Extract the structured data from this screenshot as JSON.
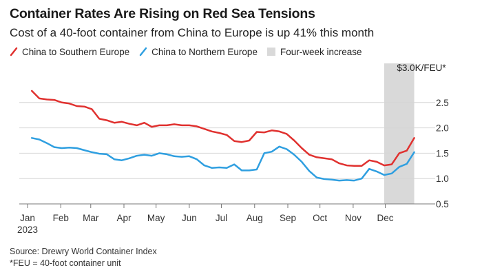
{
  "header": {
    "title": "Container Rates Are Rising on Red Sea Tensions",
    "subtitle": "Cost of a 40-foot container from China to Europe is up 41% this month"
  },
  "legend": {
    "southern": "China to Southern Europe",
    "northern": "China to Northern Europe",
    "increase": "Four-week increase"
  },
  "footer": {
    "source": "Source: Drewry World Container Index",
    "note": "*FEU = 40-foot container unit"
  },
  "colors": {
    "southern": "#e0312f",
    "northern": "#2f9fe0",
    "band": "#d9d9d9",
    "grid": "#d6d6d6",
    "axis": "#777777"
  },
  "chart_data": {
    "type": "line",
    "y_unit_label": "$3.0K/FEU*",
    "ylim": [
      0.5,
      3.0
    ],
    "yticks": [
      0.5,
      1.0,
      1.5,
      2.0,
      2.5
    ],
    "ytick_labels": [
      "0.5",
      "1.0",
      "1.5",
      "2.0",
      "2.5"
    ],
    "y_axis_side": "right",
    "xlim": [
      "2023-01-01",
      "2023-12-27"
    ],
    "x_ticks": [
      {
        "date": "2023-01-01",
        "label": "Jan",
        "sublabel": "2023"
      },
      {
        "date": "2023-02-01",
        "label": "Feb"
      },
      {
        "date": "2023-03-01",
        "label": "Mar"
      },
      {
        "date": "2023-04-01",
        "label": "Apr"
      },
      {
        "date": "2023-05-01",
        "label": "May"
      },
      {
        "date": "2023-06-01",
        "label": "Jun"
      },
      {
        "date": "2023-07-01",
        "label": "Jul"
      },
      {
        "date": "2023-08-01",
        "label": "Aug"
      },
      {
        "date": "2023-09-01",
        "label": "Sep"
      },
      {
        "date": "2023-10-01",
        "label": "Oct"
      },
      {
        "date": "2023-11-01",
        "label": "Nov"
      },
      {
        "date": "2023-12-01",
        "label": "Dec"
      }
    ],
    "highlight_band": {
      "start": "2023-11-30",
      "end": "2023-12-28"
    },
    "series": [
      {
        "name": "China to Southern Europe",
        "points": [
          [
            "2023-01-05",
            2.73
          ],
          [
            "2023-01-12",
            2.58
          ],
          [
            "2023-01-19",
            2.56
          ],
          [
            "2023-01-26",
            2.55
          ],
          [
            "2023-02-02",
            2.5
          ],
          [
            "2023-02-09",
            2.48
          ],
          [
            "2023-02-16",
            2.43
          ],
          [
            "2023-02-23",
            2.42
          ],
          [
            "2023-03-02",
            2.37
          ],
          [
            "2023-03-09",
            2.18
          ],
          [
            "2023-03-16",
            2.15
          ],
          [
            "2023-03-23",
            2.1
          ],
          [
            "2023-03-30",
            2.12
          ],
          [
            "2023-04-06",
            2.08
          ],
          [
            "2023-04-13",
            2.05
          ],
          [
            "2023-04-20",
            2.1
          ],
          [
            "2023-04-27",
            2.02
          ],
          [
            "2023-05-04",
            2.05
          ],
          [
            "2023-05-11",
            2.05
          ],
          [
            "2023-05-18",
            2.07
          ],
          [
            "2023-05-25",
            2.05
          ],
          [
            "2023-06-01",
            2.05
          ],
          [
            "2023-06-08",
            2.03
          ],
          [
            "2023-06-15",
            1.98
          ],
          [
            "2023-06-22",
            1.93
          ],
          [
            "2023-06-29",
            1.9
          ],
          [
            "2023-07-06",
            1.86
          ],
          [
            "2023-07-13",
            1.74
          ],
          [
            "2023-07-20",
            1.72
          ],
          [
            "2023-07-27",
            1.75
          ],
          [
            "2023-08-03",
            1.92
          ],
          [
            "2023-08-10",
            1.91
          ],
          [
            "2023-08-17",
            1.95
          ],
          [
            "2023-08-24",
            1.93
          ],
          [
            "2023-08-31",
            1.88
          ],
          [
            "2023-09-07",
            1.75
          ],
          [
            "2023-09-14",
            1.6
          ],
          [
            "2023-09-21",
            1.47
          ],
          [
            "2023-09-28",
            1.42
          ],
          [
            "2023-10-05",
            1.4
          ],
          [
            "2023-10-12",
            1.38
          ],
          [
            "2023-10-19",
            1.3
          ],
          [
            "2023-10-26",
            1.26
          ],
          [
            "2023-11-02",
            1.25
          ],
          [
            "2023-11-09",
            1.25
          ],
          [
            "2023-11-16",
            1.36
          ],
          [
            "2023-11-23",
            1.33
          ],
          [
            "2023-11-30",
            1.26
          ],
          [
            "2023-12-07",
            1.28
          ],
          [
            "2023-12-14",
            1.5
          ],
          [
            "2023-12-21",
            1.55
          ],
          [
            "2023-12-28",
            1.8
          ]
        ]
      },
      {
        "name": "China to Northern Europe",
        "points": [
          [
            "2023-01-05",
            1.8
          ],
          [
            "2023-01-12",
            1.77
          ],
          [
            "2023-01-19",
            1.7
          ],
          [
            "2023-01-26",
            1.62
          ],
          [
            "2023-02-02",
            1.6
          ],
          [
            "2023-02-09",
            1.61
          ],
          [
            "2023-02-16",
            1.6
          ],
          [
            "2023-02-23",
            1.56
          ],
          [
            "2023-03-02",
            1.52
          ],
          [
            "2023-03-09",
            1.49
          ],
          [
            "2023-03-16",
            1.48
          ],
          [
            "2023-03-23",
            1.38
          ],
          [
            "2023-03-30",
            1.36
          ],
          [
            "2023-04-06",
            1.4
          ],
          [
            "2023-04-13",
            1.45
          ],
          [
            "2023-04-20",
            1.47
          ],
          [
            "2023-04-27",
            1.45
          ],
          [
            "2023-05-04",
            1.5
          ],
          [
            "2023-05-11",
            1.48
          ],
          [
            "2023-05-18",
            1.44
          ],
          [
            "2023-05-25",
            1.43
          ],
          [
            "2023-06-01",
            1.44
          ],
          [
            "2023-06-08",
            1.38
          ],
          [
            "2023-06-15",
            1.26
          ],
          [
            "2023-06-22",
            1.21
          ],
          [
            "2023-06-29",
            1.22
          ],
          [
            "2023-07-06",
            1.21
          ],
          [
            "2023-07-13",
            1.28
          ],
          [
            "2023-07-20",
            1.16
          ],
          [
            "2023-07-27",
            1.16
          ],
          [
            "2023-08-03",
            1.18
          ],
          [
            "2023-08-10",
            1.5
          ],
          [
            "2023-08-17",
            1.53
          ],
          [
            "2023-08-24",
            1.63
          ],
          [
            "2023-08-31",
            1.58
          ],
          [
            "2023-09-07",
            1.47
          ],
          [
            "2023-09-14",
            1.33
          ],
          [
            "2023-09-21",
            1.15
          ],
          [
            "2023-09-28",
            1.02
          ],
          [
            "2023-10-05",
            0.99
          ],
          [
            "2023-10-12",
            0.98
          ],
          [
            "2023-10-19",
            0.96
          ],
          [
            "2023-10-26",
            0.97
          ],
          [
            "2023-11-02",
            0.96
          ],
          [
            "2023-11-09",
            1.0
          ],
          [
            "2023-11-16",
            1.19
          ],
          [
            "2023-11-23",
            1.14
          ],
          [
            "2023-11-30",
            1.07
          ],
          [
            "2023-12-07",
            1.1
          ],
          [
            "2023-12-14",
            1.23
          ],
          [
            "2023-12-21",
            1.29
          ],
          [
            "2023-12-28",
            1.52
          ]
        ]
      }
    ]
  }
}
